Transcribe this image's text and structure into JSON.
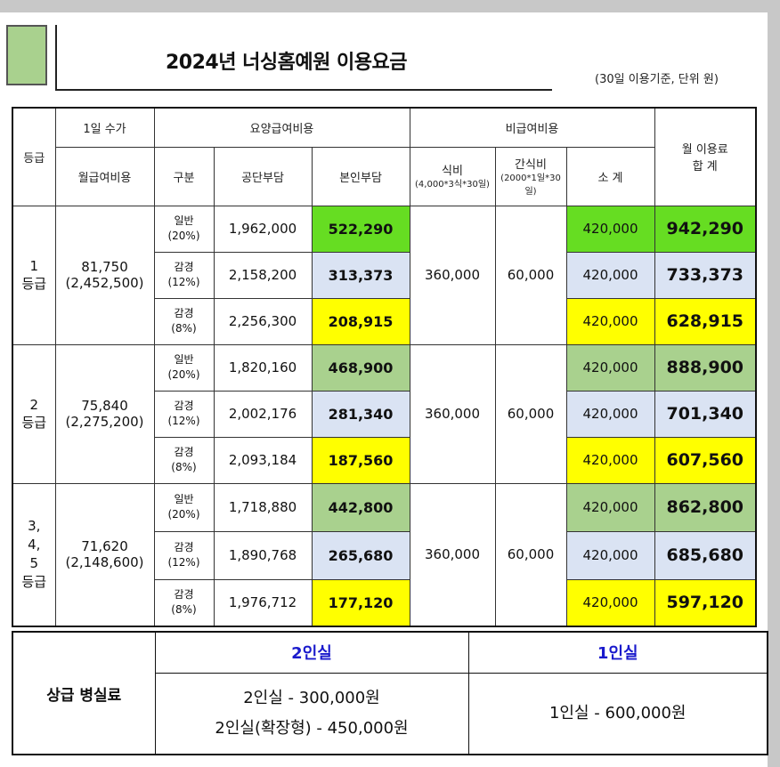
{
  "title": "2024년 너싱홈예원 이용요금",
  "unit_note": "(30일 이용기준, 단위 원)",
  "header": {
    "grade": "등급",
    "daily_fee": "1일 수가",
    "monthly_benefit": "월급여비용",
    "care_benefit": "요양급여비용",
    "category": "구분",
    "public_share": "공단부담",
    "self_share": "본인부담",
    "non_benefit": "비급여비용",
    "meal": "식비",
    "meal_note": "(4,000*3식*30일)",
    "snack": "간식비",
    "snack_note": "(2000*1일*30일)",
    "subtotal": "소 계",
    "total_line1": "월 이용료",
    "total_line2": "합 계"
  },
  "groups": [
    {
      "grade_lines": [
        "1",
        "등급"
      ],
      "daily": "81,750",
      "monthly": "(2,452,500)",
      "meal": "360,000",
      "snack": "60,000",
      "rows": [
        {
          "cat1": "일반",
          "cat2": "(20%)",
          "public": "1,962,000",
          "self": "522,290",
          "subtotal": "420,000",
          "total": "942,290"
        },
        {
          "cat1": "감경",
          "cat2": "(12%)",
          "public": "2,158,200",
          "self": "313,373",
          "subtotal": "420,000",
          "total": "733,373"
        },
        {
          "cat1": "감경",
          "cat2": "(8%)",
          "public": "2,256,300",
          "self": "208,915",
          "subtotal": "420,000",
          "total": "628,915"
        }
      ]
    },
    {
      "grade_lines": [
        "2",
        "등급"
      ],
      "daily": "75,840",
      "monthly": "(2,275,200)",
      "meal": "360,000",
      "snack": "60,000",
      "rows": [
        {
          "cat1": "일반",
          "cat2": "(20%)",
          "public": "1,820,160",
          "self": "468,900",
          "subtotal": "420,000",
          "total": "888,900"
        },
        {
          "cat1": "감경",
          "cat2": "(12%)",
          "public": "2,002,176",
          "self": "281,340",
          "subtotal": "420,000",
          "total": "701,340"
        },
        {
          "cat1": "감경",
          "cat2": "(8%)",
          "public": "2,093,184",
          "self": "187,560",
          "subtotal": "420,000",
          "total": "607,560"
        }
      ]
    },
    {
      "grade_lines": [
        "3,",
        "4,",
        "5",
        "등급"
      ],
      "daily": "71,620",
      "monthly": "(2,148,600)",
      "meal": "360,000",
      "snack": "60,000",
      "rows": [
        {
          "cat1": "일반",
          "cat2": "(20%)",
          "public": "1,718,880",
          "self": "442,800",
          "subtotal": "420,000",
          "total": "862,800"
        },
        {
          "cat1": "감경",
          "cat2": "(12%)",
          "public": "1,890,768",
          "self": "265,680",
          "subtotal": "420,000",
          "total": "685,680"
        },
        {
          "cat1": "감경",
          "cat2": "(8%)",
          "public": "1,976,712",
          "self": "177,120",
          "subtotal": "420,000",
          "total": "597,120"
        }
      ]
    }
  ],
  "room": {
    "label": "상급 병실료",
    "two_header": "2인실",
    "one_header": "1인실",
    "two_line1": "2인실 - 300,000원",
    "two_line2": "2인실(확장형) - 450,000원",
    "one_line": "1인실 - 600,000원"
  },
  "colors": {
    "bright_green": "#66dd22",
    "olive_green": "#a9d18e",
    "light_blue": "#dae3f3",
    "yellow": "#ffff00",
    "blue_text": "#1a1acc"
  }
}
